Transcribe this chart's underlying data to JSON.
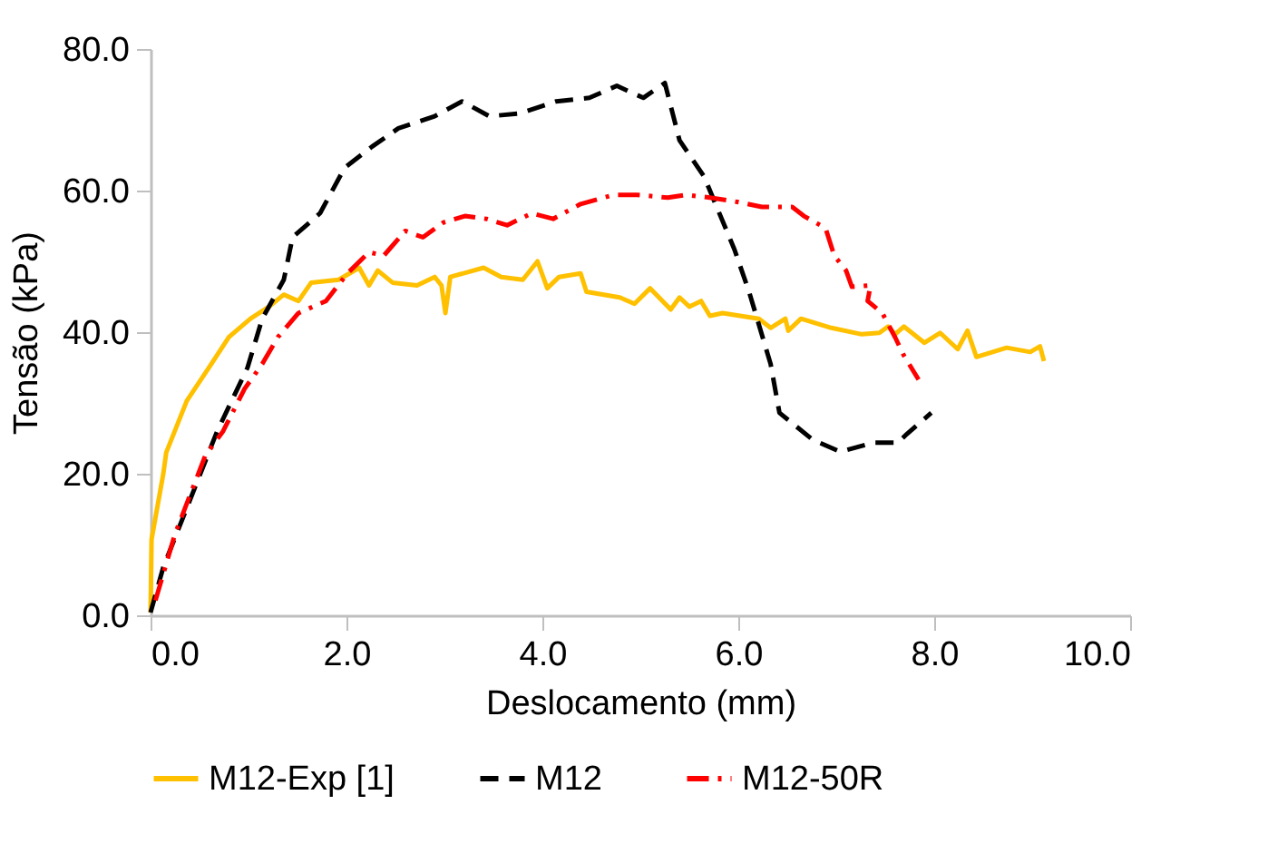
{
  "chart_data": {
    "type": "line",
    "xlabel": "Deslocamento (mm)",
    "ylabel": "Tensão (kPa)",
    "xlim": [
      0,
      10
    ],
    "ylim": [
      0,
      80
    ],
    "xticks": [
      {
        "value": 0,
        "label": "0.0"
      },
      {
        "value": 2,
        "label": "2.0"
      },
      {
        "value": 4,
        "label": "4.0"
      },
      {
        "value": 6,
        "label": "6.0"
      },
      {
        "value": 8,
        "label": "8.0"
      },
      {
        "value": 10,
        "label": "10.0"
      }
    ],
    "yticks": [
      {
        "value": 0,
        "label": "0.0"
      },
      {
        "value": 20,
        "label": "20.0"
      },
      {
        "value": 40,
        "label": "40.0"
      },
      {
        "value": 60,
        "label": "60.0"
      },
      {
        "value": 80,
        "label": "80.0"
      }
    ],
    "grid": false,
    "legend": "bottom",
    "marker": "none",
    "series": [
      {
        "name": "M12-Exp [1]",
        "color": "#ffc000",
        "line_style": "solid",
        "x": [
          0,
          0.01,
          0.13,
          0.16,
          0.37,
          0.62,
          0.8,
          1.02,
          1.21,
          1.36,
          1.51,
          1.64,
          1.92,
          2.13,
          2.23,
          2.32,
          2.47,
          2.72,
          2.9,
          2.97,
          3.01,
          3.06,
          3.4,
          3.58,
          3.8,
          3.95,
          4.05,
          4.17,
          4.39,
          4.45,
          4.79,
          4.94,
          5.1,
          5.31,
          5.4,
          5.5,
          5.62,
          5.71,
          5.84,
          6.21,
          6.33,
          6.48,
          6.51,
          6.64,
          6.95,
          7.26,
          7.44,
          7.53,
          7.6,
          7.69,
          7.9,
          8.06,
          8.24,
          8.34,
          8.43,
          8.74,
          8.98,
          9.08,
          9.12
        ],
        "values": [
          0.4,
          10.7,
          20,
          23,
          30.3,
          35.5,
          39.3,
          41.9,
          43.6,
          45.3,
          44.4,
          47,
          47.4,
          49.1,
          46.6,
          48.7,
          47,
          46.6,
          47.8,
          46.6,
          42.7,
          47.8,
          49.1,
          47.8,
          47.4,
          50,
          46.2,
          47.8,
          48.3,
          45.7,
          44.9,
          44,
          46.2,
          43.2,
          44.9,
          43.6,
          44.4,
          42.3,
          42.7,
          41.9,
          40.6,
          41.9,
          40.2,
          41.9,
          40.6,
          39.7,
          39.9,
          40.8,
          39.7,
          40.8,
          38.5,
          39.9,
          37.6,
          40.2,
          36.5,
          37.8,
          37.2,
          38,
          35.9
        ]
      },
      {
        "name": "M12",
        "color": "#000000",
        "line_style": "dashed",
        "x": [
          0,
          0.13,
          0.4,
          0.68,
          0.99,
          1.14,
          1.36,
          1.45,
          1.73,
          1.98,
          2.26,
          2.53,
          2.9,
          3.18,
          3.46,
          3.77,
          4.14,
          4.48,
          4.76,
          5.03,
          5.25,
          5.4,
          5.65,
          5.96,
          6.11,
          6.33,
          6.42,
          6.76,
          7.04,
          7.38,
          7.63,
          7.72,
          7.97
        ],
        "values": [
          0.4,
          6.8,
          16.2,
          26,
          35,
          41.9,
          47.4,
          53.4,
          56.8,
          63.2,
          66.2,
          68.8,
          70.5,
          72.6,
          70.5,
          70.9,
          72.6,
          73.1,
          74.8,
          73.1,
          75.2,
          67.1,
          62,
          51.7,
          45.7,
          35.5,
          28.6,
          24.8,
          23.1,
          24.4,
          24.4,
          25.6,
          28.6
        ]
      },
      {
        "name": "M12-50R",
        "color": "#ff0000",
        "line_style": "dashdot",
        "x": [
          0.05,
          0.25,
          0.56,
          0.74,
          0.96,
          1.14,
          1.3,
          1.51,
          1.79,
          2.01,
          2.23,
          2.38,
          2.6,
          2.78,
          2.99,
          3.21,
          3.43,
          3.64,
          3.89,
          4.11,
          4.39,
          4.73,
          4.97,
          5.28,
          5.47,
          5.71,
          5.99,
          6.24,
          6.55,
          6.67,
          6.89,
          6.98,
          7.1,
          7.16,
          7.35,
          7.32,
          7.47,
          7.6,
          7.69,
          7.84
        ],
        "values": [
          2.1,
          11.5,
          22.6,
          26,
          32,
          35.5,
          39.3,
          42.7,
          44.4,
          48.3,
          51.3,
          50.8,
          54.3,
          53.4,
          55.5,
          56.4,
          56,
          55.1,
          56.8,
          56,
          58.1,
          59.4,
          59.4,
          59,
          59.4,
          59,
          58.4,
          57.7,
          57.7,
          56.4,
          54.7,
          50.8,
          48.7,
          46.4,
          46.6,
          44.4,
          42.7,
          39.3,
          36.7,
          33.3
        ]
      }
    ]
  }
}
